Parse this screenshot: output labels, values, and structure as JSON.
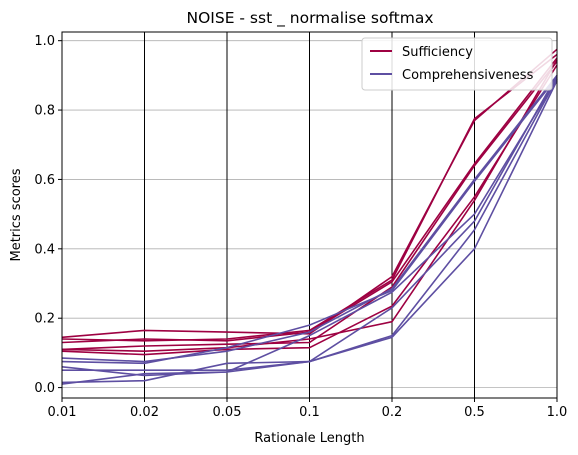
{
  "chart_data": {
    "type": "line",
    "title": "NOISE - sst _ normalise softmax",
    "xlabel": "Rationale Length",
    "ylabel": "Metrics scores",
    "x": [
      "0.01",
      "0.02",
      "0.05",
      "0.1",
      "0.2",
      "0.5",
      "1.0"
    ],
    "ylim": [
      -0.03,
      1.025
    ],
    "yticks": [
      "0.0",
      "0.2",
      "0.4",
      "0.6",
      "0.8",
      "1.0"
    ],
    "ytick_values": [
      0.0,
      0.2,
      0.4,
      0.6,
      0.8,
      1.0
    ],
    "grid": "horizontal",
    "legend_position": "top-right",
    "colors": {
      "Sufficiency": "#9e0142",
      "Comprehensiveness": "#5e4fa2"
    },
    "series": [
      {
        "name": "Sufficiency",
        "values": [
          0.145,
          0.165,
          0.16,
          0.155,
          0.32,
          0.77,
          0.975
        ]
      },
      {
        "name": "",
        "group": "Sufficiency",
        "values": [
          0.14,
          0.135,
          0.14,
          0.165,
          0.31,
          0.775,
          0.96
        ]
      },
      {
        "name": "",
        "group": "Sufficiency",
        "values": [
          0.13,
          0.14,
          0.135,
          0.16,
          0.305,
          0.645,
          0.95
        ]
      },
      {
        "name": "",
        "group": "Sufficiency",
        "values": [
          0.11,
          0.12,
          0.125,
          0.13,
          0.29,
          0.64,
          0.94
        ]
      },
      {
        "name": "",
        "group": "Sufficiency",
        "values": [
          0.105,
          0.095,
          0.11,
          0.115,
          0.235,
          0.55,
          0.93
        ]
      },
      {
        "name": "",
        "group": "Sufficiency",
        "values": [
          0.11,
          0.105,
          0.115,
          0.14,
          0.19,
          0.54,
          0.945
        ]
      },
      {
        "name": "Comprehensiveness",
        "values": [
          0.085,
          0.075,
          0.105,
          0.16,
          0.285,
          0.6,
          0.9
        ]
      },
      {
        "name": "",
        "group": "Comprehensiveness",
        "values": [
          0.075,
          0.07,
          0.115,
          0.18,
          0.28,
          0.595,
          0.895
        ]
      },
      {
        "name": "",
        "group": "Comprehensiveness",
        "values": [
          0.06,
          0.035,
          0.045,
          0.15,
          0.275,
          0.5,
          0.89
        ]
      },
      {
        "name": "",
        "group": "Comprehensiveness",
        "values": [
          0.05,
          0.05,
          0.05,
          0.075,
          0.23,
          0.48,
          0.9
        ]
      },
      {
        "name": "",
        "group": "Comprehensiveness",
        "values": [
          0.015,
          0.02,
          0.07,
          0.075,
          0.15,
          0.455,
          0.89
        ]
      },
      {
        "name": "",
        "group": "Comprehensiveness",
        "values": [
          0.01,
          0.04,
          0.045,
          0.075,
          0.145,
          0.4,
          0.885
        ]
      }
    ]
  }
}
